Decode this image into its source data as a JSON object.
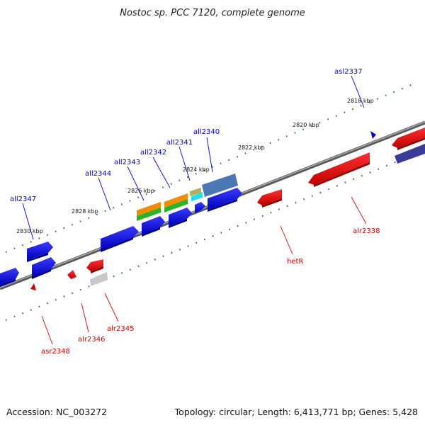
{
  "title": "Nostoc sp. PCC 7120, complete genome",
  "footer": {
    "accession": "Accession: NC_003272",
    "topology": "Topology: circular; Length: 6,413,771 bp; Genes: 5,428"
  },
  "ruler_labels": [
    "2818 kbp",
    "2820 kbp",
    "2822 kbp",
    "2824 kbp",
    "2826 kbp",
    "2828 kbp",
    "2830 kbp"
  ],
  "gene_labels": {
    "forward": [
      "asl2337",
      "all2340",
      "all2341",
      "all2342",
      "all2343",
      "all2344",
      "all2347"
    ],
    "reverse": [
      "alr2338",
      "hetR",
      "alr2345",
      "alr2346",
      "asr2348"
    ]
  },
  "colors": {
    "forward_gene": "#0000dd",
    "reverse_gene": "#dd0000",
    "forward_label": "#0000cc",
    "reverse_label": "#cc0000",
    "backbone": "#777777",
    "tick": "#2a7a2a"
  }
}
